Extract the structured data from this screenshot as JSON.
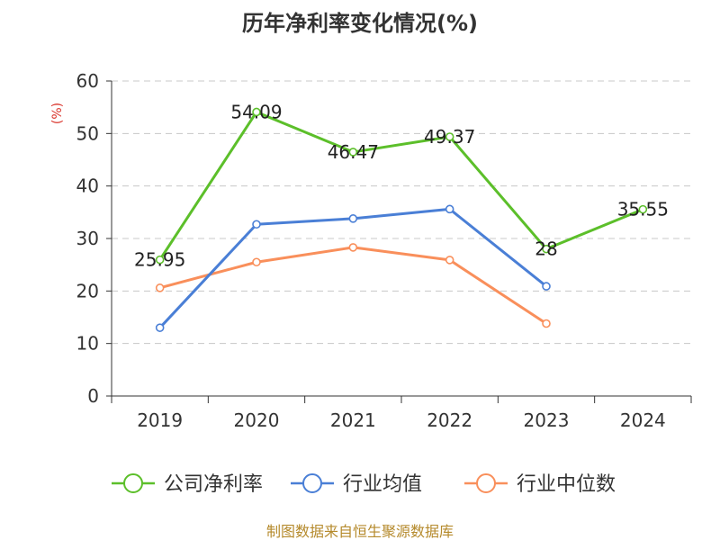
{
  "chart_data": {
    "type": "line",
    "title": "历年净利率变化情况(%)",
    "ylabel": "(%)",
    "xlabel": "",
    "categories": [
      "2019",
      "2020",
      "2021",
      "2022",
      "2023",
      "2024"
    ],
    "y_ticks": [
      0,
      10,
      20,
      30,
      40,
      50,
      60
    ],
    "ylim": [
      0,
      60
    ],
    "grid": true,
    "legend_position": "bottom",
    "series": [
      {
        "name": "公司净利率",
        "color": "#5cbf2a",
        "values": [
          25.95,
          54.09,
          46.47,
          49.37,
          28,
          35.55
        ],
        "labels": [
          "25.95",
          "54.09",
          "46.47",
          "49.37",
          "28",
          "35.55"
        ]
      },
      {
        "name": "行业均值",
        "color": "#4a7fd6",
        "values": [
          13.0,
          32.7,
          33.8,
          35.6,
          20.9,
          null
        ]
      },
      {
        "name": "行业中位数",
        "color": "#f98f5b",
        "values": [
          20.6,
          25.5,
          28.3,
          25.9,
          13.8,
          null
        ]
      }
    ]
  },
  "footer": {
    "source_text": "制图数据来自恒生聚源数据库",
    "color": "#b58a2c"
  },
  "ylabel_color": "#d9342b"
}
